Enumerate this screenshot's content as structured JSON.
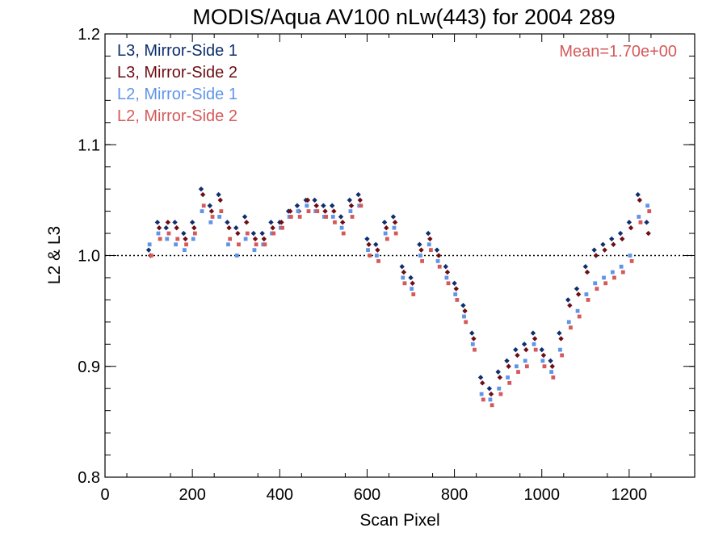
{
  "chart_data": {
    "type": "scatter",
    "title": "MODIS/Aqua AV100 nLw(443) for 2004 289",
    "xlabel": "Scan Pixel",
    "ylabel": "L2 & L3",
    "xlim": [
      0,
      1350
    ],
    "ylim": [
      0.8,
      1.2
    ],
    "x_ticks": [
      0,
      200,
      400,
      600,
      800,
      1000,
      1200
    ],
    "x_tick_labels": [
      "0",
      "200",
      "400",
      "600",
      "800",
      "1000",
      "1200"
    ],
    "y_ticks": [
      0.8,
      0.9,
      1.0,
      1.1,
      1.2
    ],
    "y_tick_labels": [
      "0.8",
      "0.9",
      "1.0",
      "1.1",
      "1.2"
    ],
    "reference_line": {
      "y": 1.0,
      "style": "dotted"
    },
    "annotation": {
      "text": "Mean=1.70e+00",
      "color": "#d45a5a",
      "placement": "top-right"
    },
    "legend_placement": "top-left",
    "series": [
      {
        "name": "L3, Mirror-Side 1",
        "color": "#0e2f6e",
        "marker": "diamond",
        "x": [
          100,
          120,
          140,
          160,
          180,
          200,
          220,
          240,
          260,
          280,
          300,
          320,
          340,
          360,
          380,
          400,
          420,
          440,
          460,
          480,
          500,
          520,
          540,
          560,
          580,
          600,
          620,
          640,
          660,
          680,
          700,
          720,
          740,
          760,
          780,
          800,
          820,
          840,
          860,
          880,
          900,
          920,
          940,
          960,
          980,
          1000,
          1020,
          1040,
          1060,
          1080,
          1100,
          1120,
          1140,
          1160,
          1180,
          1200,
          1220,
          1240
        ],
        "y": [
          1.005,
          1.03,
          1.025,
          1.03,
          1.02,
          1.03,
          1.06,
          1.045,
          1.055,
          1.03,
          1.025,
          1.035,
          1.02,
          1.02,
          1.03,
          1.03,
          1.04,
          1.045,
          1.05,
          1.05,
          1.045,
          1.045,
          1.035,
          1.05,
          1.055,
          1.015,
          1.01,
          1.03,
          1.035,
          0.99,
          0.98,
          1.01,
          1.02,
          1.005,
          0.99,
          0.975,
          0.955,
          0.93,
          0.89,
          0.88,
          0.895,
          0.905,
          0.915,
          0.92,
          0.93,
          0.915,
          0.905,
          0.93,
          0.96,
          0.97,
          0.99,
          1.005,
          1.01,
          1.015,
          1.02,
          1.03,
          1.055,
          1.03
        ]
      },
      {
        "name": "L3, Mirror-Side 2",
        "color": "#6e0e14",
        "marker": "diamond",
        "x": [
          104,
          124,
          144,
          164,
          184,
          204,
          224,
          244,
          264,
          284,
          304,
          324,
          344,
          364,
          384,
          404,
          424,
          444,
          464,
          484,
          504,
          524,
          544,
          564,
          584,
          604,
          624,
          644,
          664,
          684,
          704,
          724,
          744,
          764,
          784,
          804,
          824,
          844,
          864,
          884,
          904,
          924,
          944,
          964,
          984,
          1004,
          1024,
          1044,
          1064,
          1084,
          1104,
          1124,
          1144,
          1164,
          1184,
          1204,
          1224,
          1244
        ],
        "y": [
          1.0,
          1.025,
          1.03,
          1.025,
          1.015,
          1.025,
          1.055,
          1.04,
          1.05,
          1.025,
          1.02,
          1.03,
          1.015,
          1.015,
          1.025,
          1.03,
          1.04,
          1.04,
          1.05,
          1.045,
          1.04,
          1.04,
          1.03,
          1.045,
          1.05,
          1.01,
          1.005,
          1.025,
          1.03,
          0.985,
          0.975,
          1.005,
          1.015,
          1.0,
          0.985,
          0.97,
          0.95,
          0.925,
          0.885,
          0.875,
          0.89,
          0.9,
          0.91,
          0.915,
          0.925,
          0.91,
          0.9,
          0.925,
          0.955,
          0.965,
          0.985,
          1.0,
          1.005,
          1.01,
          1.015,
          1.025,
          1.05,
          1.02
        ]
      },
      {
        "name": "L2, Mirror-Side 1",
        "color": "#5f95e8",
        "marker": "square",
        "x": [
          102,
          122,
          142,
          162,
          182,
          202,
          222,
          242,
          262,
          282,
          302,
          322,
          342,
          362,
          382,
          402,
          422,
          442,
          462,
          482,
          502,
          522,
          542,
          562,
          582,
          602,
          622,
          642,
          662,
          682,
          702,
          722,
          742,
          762,
          782,
          802,
          822,
          842,
          862,
          882,
          902,
          922,
          942,
          962,
          982,
          1002,
          1022,
          1042,
          1062,
          1082,
          1102,
          1122,
          1142,
          1162,
          1182,
          1202,
          1222,
          1242
        ],
        "y": [
          1.01,
          1.02,
          1.015,
          1.01,
          1.005,
          1.015,
          1.04,
          1.03,
          1.035,
          1.01,
          1.0,
          1.015,
          1.005,
          1.01,
          1.02,
          1.025,
          1.035,
          1.04,
          1.045,
          1.04,
          1.035,
          1.035,
          1.025,
          1.04,
          1.045,
          1.005,
          1.0,
          1.02,
          1.025,
          0.98,
          0.97,
          1.0,
          1.01,
          0.995,
          0.98,
          0.965,
          0.945,
          0.92,
          0.875,
          0.87,
          0.88,
          0.89,
          0.9,
          0.905,
          0.92,
          0.905,
          0.895,
          0.915,
          0.94,
          0.95,
          0.965,
          0.975,
          0.98,
          0.985,
          0.99,
          1.0,
          1.035,
          1.045
        ]
      },
      {
        "name": "L2, Mirror-Side 2",
        "color": "#d45a5a",
        "marker": "square",
        "x": [
          106,
          126,
          146,
          166,
          186,
          206,
          226,
          246,
          266,
          286,
          306,
          326,
          346,
          366,
          386,
          406,
          426,
          446,
          466,
          486,
          506,
          526,
          546,
          566,
          586,
          606,
          626,
          646,
          666,
          686,
          706,
          726,
          746,
          766,
          786,
          806,
          826,
          846,
          866,
          886,
          906,
          926,
          946,
          966,
          986,
          1006,
          1026,
          1046,
          1066,
          1086,
          1106,
          1126,
          1146,
          1166,
          1186,
          1206,
          1226,
          1246
        ],
        "y": [
          1.0,
          1.015,
          1.02,
          1.015,
          1.01,
          1.02,
          1.045,
          1.035,
          1.04,
          1.015,
          1.01,
          1.02,
          1.01,
          1.01,
          1.02,
          1.025,
          1.035,
          1.035,
          1.04,
          1.04,
          1.035,
          1.03,
          1.02,
          1.035,
          1.045,
          1.0,
          0.995,
          1.015,
          1.02,
          0.975,
          0.965,
          0.995,
          1.005,
          0.99,
          0.975,
          0.96,
          0.94,
          0.915,
          0.87,
          0.865,
          0.875,
          0.885,
          0.895,
          0.9,
          0.915,
          0.9,
          0.89,
          0.91,
          0.935,
          0.945,
          0.96,
          0.97,
          0.975,
          0.98,
          0.985,
          0.995,
          1.03,
          1.04
        ]
      }
    ]
  }
}
